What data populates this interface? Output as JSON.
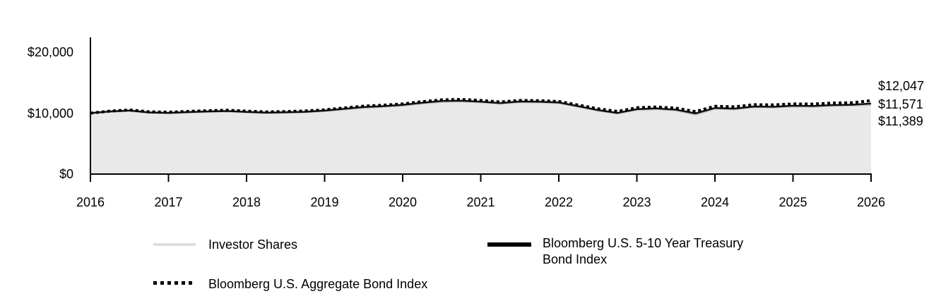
{
  "chart_data": {
    "type": "area",
    "title": "",
    "xlabel": "",
    "ylabel": "",
    "xlim": [
      2016,
      2026
    ],
    "ylim": [
      0,
      20000
    ],
    "grid": false,
    "legend_position": "bottom",
    "x_ticks": [
      "2016",
      "2017",
      "2018",
      "2019",
      "2020",
      "2021",
      "2022",
      "2023",
      "2024",
      "2025",
      "2026"
    ],
    "y_ticks": [
      {
        "label": "$20,000",
        "value": 20000
      },
      {
        "label": "$10,000",
        "value": 10000
      },
      {
        "label": "$0",
        "value": 0
      }
    ],
    "x": [
      2016,
      2016.25,
      2016.5,
      2016.75,
      2017,
      2017.25,
      2017.5,
      2017.75,
      2018,
      2018.25,
      2018.5,
      2018.75,
      2019,
      2019.25,
      2019.5,
      2019.75,
      2020,
      2020.25,
      2020.5,
      2020.75,
      2021,
      2021.25,
      2021.5,
      2021.75,
      2022,
      2022.25,
      2022.5,
      2022.75,
      2023,
      2023.25,
      2023.5,
      2023.75,
      2024,
      2024.25,
      2024.5,
      2024.75,
      2025,
      2025.25,
      2025.5,
      2025.75,
      2026
    ],
    "series": [
      {
        "name": "Investor Shares",
        "style": "solid",
        "color": "#bdbdbd",
        "fill": "#e9e9e9",
        "end_label": "$11,389",
        "end_value": 11389,
        "values": [
          10000,
          10230,
          10370,
          10060,
          9990,
          10110,
          10220,
          10290,
          10150,
          10020,
          10080,
          10160,
          10350,
          10620,
          10900,
          11050,
          11250,
          11600,
          11880,
          11930,
          11790,
          11560,
          11820,
          11780,
          11650,
          11060,
          10430,
          9960,
          10560,
          10680,
          10480,
          9780,
          10750,
          10650,
          11000,
          10950,
          11120,
          11080,
          11230,
          11280,
          11389
        ]
      },
      {
        "name": "Bloomberg U.S. 5-10 Year Treasury Bond Index",
        "style": "solid",
        "color": "#111111",
        "end_label": "$11,571",
        "end_value": 11571,
        "values": [
          10000,
          10280,
          10430,
          10120,
          10050,
          10170,
          10280,
          10350,
          10210,
          10080,
          10140,
          10220,
          10420,
          10700,
          10990,
          11140,
          11350,
          11700,
          11990,
          12040,
          11890,
          11650,
          11910,
          11870,
          11740,
          11140,
          10510,
          10040,
          10650,
          10770,
          10570,
          9960,
          10840,
          10740,
          11090,
          11040,
          11210,
          11170,
          11320,
          11370,
          11571
        ]
      },
      {
        "name": "Bloomberg U.S. Aggregate Bond Index",
        "style": "dotted",
        "color": "#000000",
        "end_label": "$12,047",
        "end_value": 12047,
        "values": [
          10000,
          10330,
          10520,
          10220,
          10160,
          10290,
          10400,
          10480,
          10340,
          10210,
          10270,
          10360,
          10560,
          10860,
          11160,
          11310,
          11520,
          11880,
          12180,
          12250,
          12080,
          11840,
          12090,
          12050,
          11920,
          11330,
          10730,
          10280,
          10890,
          11010,
          10820,
          10260,
          11130,
          11040,
          11390,
          11350,
          11520,
          11490,
          11650,
          11710,
          12047
        ]
      }
    ]
  },
  "axis_color": "#000000"
}
